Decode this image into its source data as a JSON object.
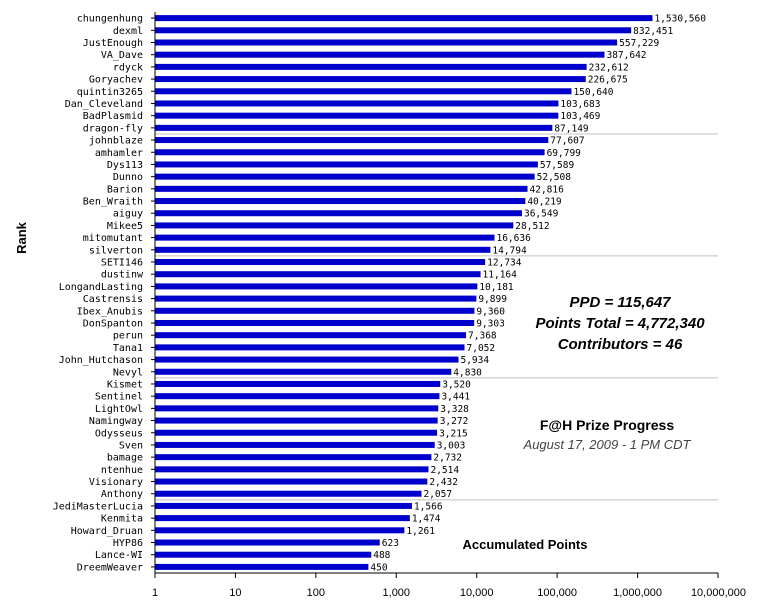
{
  "chart_data": {
    "type": "bar",
    "orientation": "horizontal",
    "x_scale": "log",
    "xlim": [
      1,
      10000000
    ],
    "x_ticks": [
      "1",
      "10",
      "100",
      "1,000",
      "10,000",
      "100,000",
      "1,000,000",
      "10,000,000"
    ],
    "ylabel": "Rank",
    "xlabel": "Accumulated Points",
    "grid": "horizontal lines every 10 rows",
    "bar_color": "#0000cc",
    "categories": [
      "chungenhung",
      "dexml",
      "JustEnough",
      "VA_Dave",
      "rdyck",
      "Goryachev",
      "quintin3265",
      "Dan_Cleveland",
      "BadPlasmid",
      "dragon-fly",
      "johnblaze",
      "amhamler",
      "Dys113",
      "Dunno",
      "Barion",
      "Ben_Wraith",
      "aiguy",
      "Mikee5",
      "mitomutant",
      "silverton",
      "SETI146",
      "dustinw",
      "LongandLasting",
      "Castrensis",
      "Ibex_Anubis",
      "DonSpanton",
      "perun",
      "Tana1",
      "John_Hutchason",
      "Nevyl",
      "Kismet",
      "Sentinel",
      "LightOwl",
      "Namingway",
      "Odysseus",
      "Sven",
      "bamage",
      "ntenhue",
      "Visionary",
      "Anthony",
      "JediMasterLucia",
      "Kenmita",
      "Howard_Druan",
      "HYP86",
      "Lance-WI",
      "DreemWeaver"
    ],
    "values": [
      1530560,
      832451,
      557229,
      387642,
      232612,
      226675,
      150640,
      103683,
      103469,
      87149,
      77607,
      69799,
      57589,
      52508,
      42816,
      40219,
      36549,
      28512,
      16636,
      14794,
      12734,
      11164,
      10181,
      9899,
      9360,
      9303,
      7368,
      7052,
      5934,
      4830,
      3520,
      3441,
      3328,
      3272,
      3215,
      3003,
      2732,
      2514,
      2432,
      2057,
      1566,
      1474,
      1261,
      623,
      488,
      450
    ],
    "value_labels": [
      "1,530,560",
      "832,451",
      "557,229",
      "387,642",
      "232,612",
      "226,675",
      "150,640",
      "103,683",
      "103,469",
      "87,149",
      "77,607",
      "69,799",
      "57,589",
      "52,508",
      "42,816",
      "40,219",
      "36,549",
      "28,512",
      "16,636",
      "14,794",
      "12,734",
      "11,164",
      "10,181",
      "9,899",
      "9,360",
      "9,303",
      "7,368",
      "7,052",
      "5,934",
      "4,830",
      "3,520",
      "3,441",
      "3,328",
      "3,272",
      "3,215",
      "3,003",
      "2,732",
      "2,514",
      "2,432",
      "2,057",
      "1,566",
      "1,474",
      "1,261",
      "623",
      "488",
      "450"
    ],
    "annotations": {
      "ppd": "PPD = 115,647",
      "points_total": "Points Total = 4,772,340",
      "contributors": "Contributors = 46",
      "progress_title": "F@H Prize Progress",
      "progress_date": "August 17, 2009 - 1 PM CDT"
    }
  }
}
